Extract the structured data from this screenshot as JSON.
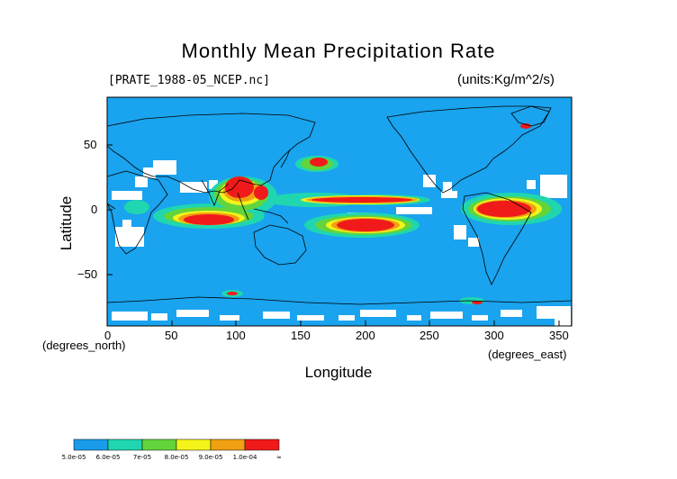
{
  "title": "Monthly Mean Precipitation Rate",
  "file_label": "[PRATE_1988-05_NCEP.nc]",
  "units_label": "(units:Kg/m^2/s)",
  "y_axis_label": "Latitude",
  "x_axis_label": "Longitude",
  "y_unit_label": "(degrees_north)",
  "x_unit_label": "(degrees_east)",
  "x_ticks": [
    "0",
    "50",
    "100",
    "150",
    "200",
    "250",
    "300",
    "350"
  ],
  "y_ticks": [
    "50",
    "0",
    "−50"
  ],
  "legend": {
    "labels": [
      "5.0e-05",
      "6.0e-05",
      "7e-05",
      "8.0e-05",
      "9.0e-05",
      "1.0e-04",
      "∞"
    ],
    "colors": [
      "#1a9bea",
      "#1fd6b0",
      "#63d43b",
      "#f4f41a",
      "#f0a012",
      "#f01a1a"
    ]
  },
  "colors": {
    "ocean": "#1aa3ee",
    "nodata": "#ffffff",
    "coast": "#000000"
  }
}
